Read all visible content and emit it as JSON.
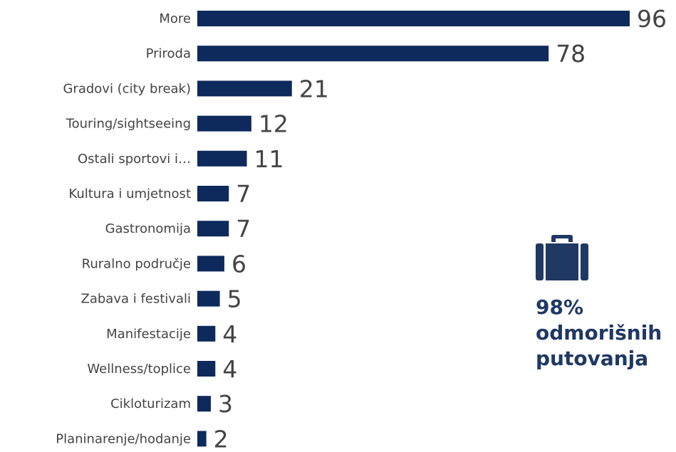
{
  "chart_data": {
    "type": "bar",
    "orientation": "horizontal",
    "categories": [
      "More",
      "Priroda",
      "Gradovi (city break)",
      "Touring/sightseeing",
      "Ostali sportovi i…",
      "Kultura i umjetnost",
      "Gastronomija",
      "Ruralno područje",
      "Zabava i festivali",
      "Manifestacije",
      "Wellness/toplice",
      "Cikloturizam",
      "Planinarenje/hodanje"
    ],
    "values": [
      96,
      78,
      21,
      12,
      11,
      7,
      7,
      6,
      5,
      4,
      4,
      3,
      2
    ],
    "data_labels": true,
    "bar_color": "#0e2a5c",
    "grid": false,
    "xlim": [
      0,
      96
    ]
  },
  "callout": {
    "icon": "suitcase-icon",
    "line1": "98%",
    "line2": "odmorišnih",
    "line3": "putovanja",
    "color": "#1f3864"
  }
}
